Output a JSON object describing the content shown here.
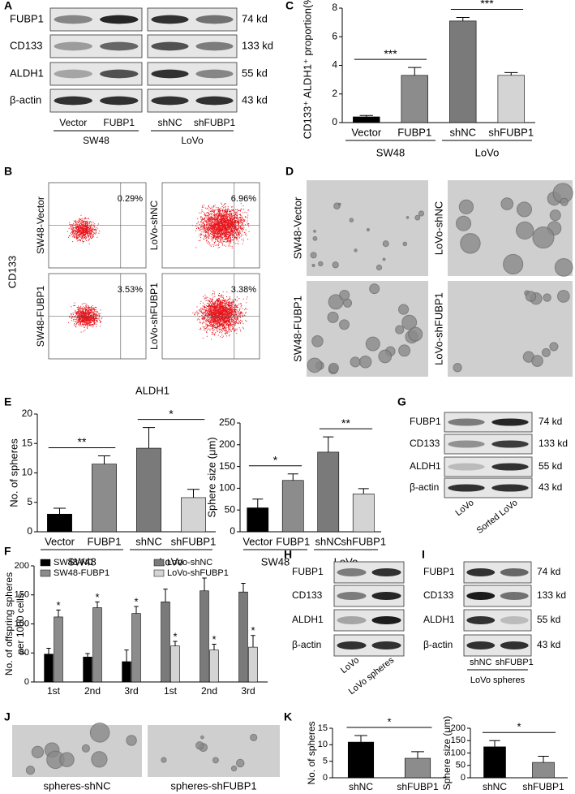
{
  "chart_data": [
    {
      "panel": "C",
      "type": "bar",
      "y_label": "CD133⁺ ALDH1⁺ proportion(%)",
      "categories": [
        "Vector",
        "FUBP1",
        "shNC",
        "shFUBP1"
      ],
      "groups": [
        "SW48",
        "LoVo"
      ],
      "values": [
        0.4,
        3.3,
        7.1,
        3.3
      ],
      "errors": [
        0.1,
        0.55,
        0.25,
        0.2
      ],
      "colors": [
        "#000000",
        "#8c8c8c",
        "#7a7a7a",
        "#d4d4d4"
      ],
      "ylim": [
        0,
        8
      ],
      "yticks": [
        0,
        2,
        4,
        6,
        8
      ],
      "significance": [
        "***",
        "***"
      ]
    },
    {
      "panel": "E",
      "type": "bar",
      "y_label": "No. of spheres",
      "categories": [
        "Vector",
        "FUBP1",
        "shNC",
        "shFUBP1"
      ],
      "groups": [
        "SW48",
        "LoVo"
      ],
      "values": [
        3,
        11.5,
        14.2,
        5.8
      ],
      "errors": [
        1,
        1.4,
        3.5,
        1.4
      ],
      "colors": [
        "#000000",
        "#8c8c8c",
        "#7a7a7a",
        "#d4d4d4"
      ],
      "ylim": [
        0,
        20
      ],
      "yticks": [
        0,
        5,
        10,
        15,
        20
      ],
      "significance": [
        "**",
        "*"
      ]
    },
    {
      "type": "bar",
      "y_label": "Sphere size (μm)",
      "categories": [
        "Vector",
        "FUBP1",
        "shNC",
        "shFUBP1"
      ],
      "groups": [
        "SW48",
        "LoVo"
      ],
      "values": [
        55,
        118,
        183,
        87
      ],
      "errors": [
        20,
        15,
        35,
        12
      ],
      "colors": [
        "#000000",
        "#8c8c8c",
        "#7a7a7a",
        "#d4d4d4"
      ],
      "ylim": [
        0,
        250
      ],
      "yticks": [
        0,
        50,
        100,
        150,
        200,
        250
      ],
      "significance": [
        "*",
        "**"
      ]
    },
    {
      "panel": "F",
      "type": "grouped_bar",
      "y_label": [
        "No. of offspring spheres",
        "per 1000 cells"
      ],
      "categories": [
        "1st",
        "2nd",
        "3rd",
        "1st",
        "2nd",
        "3rd"
      ],
      "ylim": [
        0,
        200
      ],
      "yticks": [
        0,
        50,
        100,
        150,
        200
      ],
      "series": [
        {
          "name": "SW48-NC",
          "color": "#000000",
          "values": [
            48,
            43,
            35,
            null,
            null,
            null
          ],
          "errors": [
            10,
            6,
            20,
            null,
            null,
            null
          ]
        },
        {
          "name": "SW48-FUBP1",
          "color": "#8c8c8c",
          "values": [
            112,
            128,
            118,
            null,
            null,
            null
          ],
          "errors": [
            12,
            10,
            12,
            null,
            null,
            null
          ],
          "significance": "*"
        },
        {
          "name": "LoVo-shNC",
          "color": "#7a7a7a",
          "values": [
            null,
            null,
            null,
            138,
            157,
            155
          ],
          "errors": [
            null,
            null,
            null,
            22,
            22,
            15
          ]
        },
        {
          "name": "LoVo-shFUBP1",
          "color": "#d4d4d4",
          "values": [
            null,
            null,
            null,
            62,
            55,
            60
          ],
          "errors": [
            null,
            null,
            null,
            8,
            10,
            20
          ],
          "significance": "*"
        }
      ]
    },
    {
      "panel": "K",
      "type": "bar",
      "y_label": "No. of spheres",
      "categories": [
        "shNC",
        "shFUBP1"
      ],
      "values": [
        10.8,
        5.9
      ],
      "errors": [
        2,
        2
      ],
      "colors": [
        "#000000",
        "#8c8c8c"
      ],
      "ylim": [
        0,
        15
      ],
      "yticks": [
        0,
        5,
        10,
        15
      ],
      "significance": [
        "*"
      ]
    },
    {
      "type": "bar",
      "y_label": "Sphere size (μm)",
      "categories": [
        "shNC",
        "shFUBP1"
      ],
      "values": [
        125,
        62
      ],
      "errors": [
        25,
        25
      ],
      "colors": [
        "#000000",
        "#8c8c8c"
      ],
      "ylim": [
        0,
        200
      ],
      "yticks": [
        0,
        50,
        100,
        150,
        200
      ],
      "significance": [
        "*"
      ]
    }
  ],
  "blots": [
    {
      "panel": "A",
      "proteins": [
        "FUBP1",
        "CD133",
        "ALDH1",
        "β-actin"
      ],
      "sizes": [
        "74 kd",
        "133 kd",
        "55 kd",
        "43 kd"
      ],
      "groups": [
        {
          "name": "SW48",
          "lanes": [
            "Vector",
            "FUBP1"
          ]
        },
        {
          "name": "LoVo",
          "lanes": [
            "shNC",
            "shFUBP1"
          ]
        }
      ]
    },
    {
      "panel": "G",
      "proteins": [
        "FUBP1",
        "CD133",
        "ALDH1",
        "β-actin"
      ],
      "sizes": [
        "74 kd",
        "133 kd",
        "55 kd",
        "43 kd"
      ],
      "groups": [
        {
          "lanes": [
            "LoVo",
            "Sorted LoVo"
          ]
        }
      ]
    },
    {
      "panel": "H",
      "proteins": [
        "FUBP1",
        "CD133",
        "ALDH1",
        "β-actin"
      ],
      "groups": [
        {
          "lanes": [
            "LoVo",
            "LoVo spheres"
          ]
        }
      ]
    },
    {
      "panel": "I",
      "proteins": [
        "FUBP1",
        "CD133",
        "ALDH1",
        "β-actin"
      ],
      "sizes": [
        "74 kd",
        "133 kd",
        "55 kd",
        "43 kd"
      ],
      "groups": [
        {
          "name": "LoVo spheres",
          "lanes": [
            "shNC",
            "shFUBP1"
          ]
        }
      ]
    }
  ],
  "flow": {
    "panel": "B",
    "y_label": "CD133",
    "x_label": "ALDH1",
    "plots": [
      {
        "name": "SW48-Vector",
        "percent": "0.29%"
      },
      {
        "name": "LoVo-shNC",
        "percent": "6.96%"
      },
      {
        "name": "SW48-FUBP1",
        "percent": "3.53%"
      },
      {
        "name": "LoVo-shFUBP1",
        "percent": "3.38%"
      }
    ]
  },
  "images": [
    {
      "panel": "D",
      "labels": [
        "SW48-Vector",
        "LoVo-shNC",
        "SW48-FUBP1",
        "LoVo-shFUBP1"
      ]
    },
    {
      "panel": "J",
      "labels": [
        "spheres-shNC",
        "spheres-shFUBP1"
      ]
    }
  ]
}
